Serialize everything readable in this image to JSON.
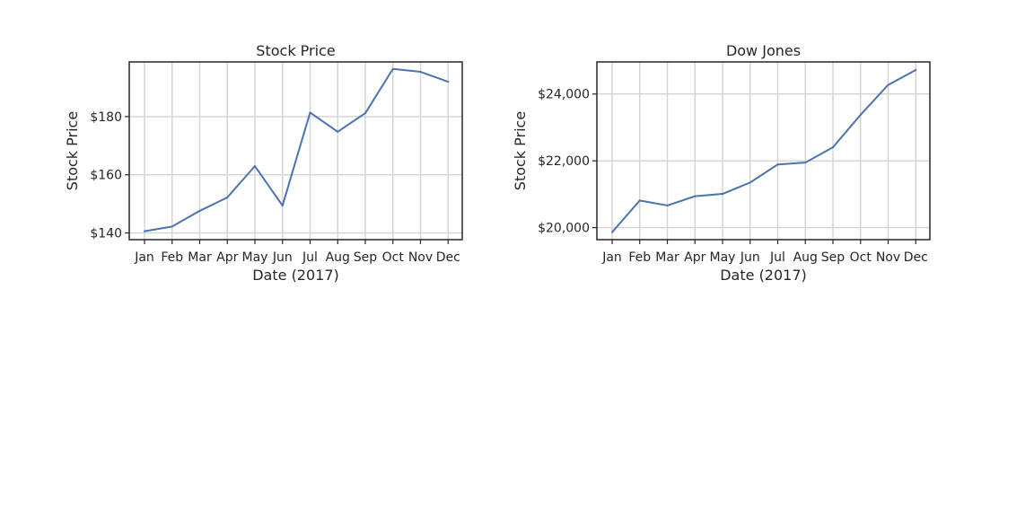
{
  "colors": {
    "series": "#4c72b0"
  },
  "chart_data": [
    {
      "type": "line",
      "title": "Stock Price",
      "xlabel": "Date (2017)",
      "ylabel": "Stock Price",
      "categories": [
        "Jan",
        "Feb",
        "Mar",
        "Apr",
        "May",
        "Jun",
        "Jul",
        "Aug",
        "Sep",
        "Oct",
        "Nov",
        "Dec"
      ],
      "values": [
        140.6,
        142.2,
        147.6,
        152.2,
        163.0,
        149.4,
        181.4,
        174.8,
        181.2,
        196.4,
        195.4,
        192.0
      ],
      "ylim": [
        137.7,
        198.8
      ],
      "yticks": [
        140,
        160,
        180
      ],
      "ytick_labels": [
        "$140",
        "$160",
        "$180"
      ],
      "grid": true
    },
    {
      "type": "line",
      "title": "Dow Jones",
      "xlabel": "Date (2017)",
      "ylabel": "Stock Price",
      "categories": [
        "Jan",
        "Feb",
        "Mar",
        "Apr",
        "May",
        "Jun",
        "Jul",
        "Aug",
        "Sep",
        "Oct",
        "Nov",
        "Dec"
      ],
      "values": [
        19864,
        20812,
        20663,
        20940,
        21009,
        21350,
        21891,
        21948,
        22405,
        23377,
        24272,
        24719
      ],
      "ylim": [
        19640,
        24960
      ],
      "yticks": [
        20000,
        22000,
        24000
      ],
      "ytick_labels": [
        "$20,000",
        "$22,000",
        "$24,000"
      ],
      "grid": true
    }
  ]
}
